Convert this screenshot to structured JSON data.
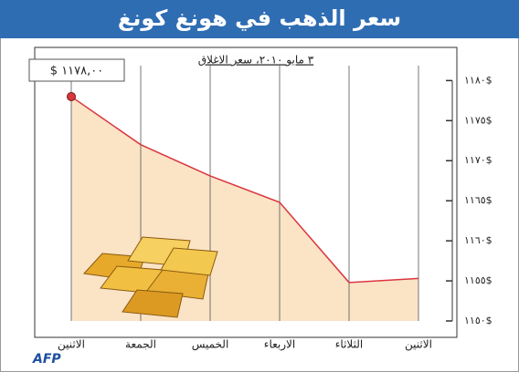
{
  "chart_data": {
    "type": "line",
    "title": "سعر الذهب في هونغ كونغ",
    "subtitle": "٣ مايو ٢٠١٠، سعر الاغلاق",
    "categories": [
      "الاثنين",
      "الجمعة",
      "الخميس",
      "الاربعاء",
      "الثلاثاء",
      "الاثنين"
    ],
    "values": [
      1178,
      1172,
      1168.1,
      1164.8,
      1154.8,
      1155.3
    ],
    "value_labels": [
      "$ ١١٧٨,٠٠",
      null,
      null,
      null,
      null,
      null
    ],
    "color": "#d9363e",
    "fill_color": "#fbe3c6",
    "ylim": [
      1150,
      1183
    ],
    "yticks": [
      {
        "value": 1150,
        "label": "١١٥٠$"
      },
      {
        "value": 1155,
        "label": "١١٥٥$"
      },
      {
        "value": 1160,
        "label": "١١٦٠$"
      },
      {
        "value": 1165,
        "label": "١١٦٥$"
      },
      {
        "value": 1170,
        "label": "١١٧٠$"
      },
      {
        "value": 1175,
        "label": "١١٧٥$"
      },
      {
        "value": 1180,
        "label": "١١٨٠$"
      }
    ],
    "grid": true,
    "source": "AFP"
  }
}
